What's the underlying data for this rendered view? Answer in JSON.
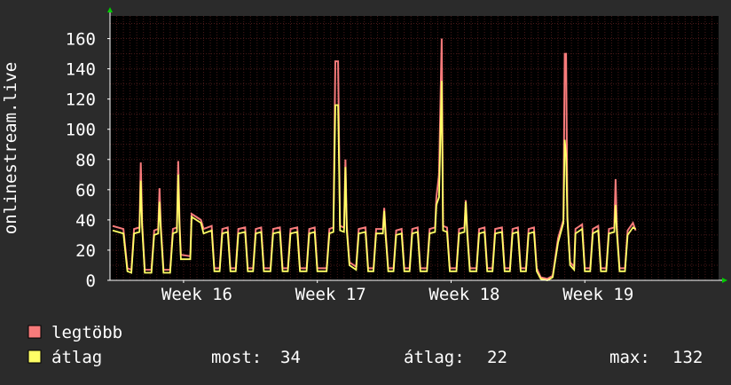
{
  "chart_data": {
    "type": "line",
    "ylabel": "onlinestream.live",
    "ylim": [
      0,
      175
    ],
    "yticks": [
      0,
      20,
      40,
      60,
      80,
      100,
      120,
      140,
      160
    ],
    "xlim": [
      15.45,
      20.0
    ],
    "xticks": [
      {
        "label": "Week 16",
        "x": 16
      },
      {
        "label": "Week 17",
        "x": 17
      },
      {
        "label": "Week 18",
        "x": 18
      },
      {
        "label": "Week 19",
        "x": 19
      }
    ],
    "grid": true,
    "colors": {
      "background": "#2b2b2b",
      "plot_bg": "#000000",
      "grid": "#5a2020",
      "axis": "#ffffff",
      "max_series": "#f77b7b",
      "avg_series": "#ffff66",
      "arrow": "#00cc00"
    },
    "series": [
      {
        "name": "legtöbb",
        "color": "#f77b7b",
        "values": [
          [
            15.47,
            36
          ],
          [
            15.55,
            34
          ],
          [
            15.58,
            8
          ],
          [
            15.61,
            7
          ],
          [
            15.63,
            34
          ],
          [
            15.67,
            35
          ],
          [
            15.68,
            78
          ],
          [
            15.69,
            38
          ],
          [
            15.71,
            7
          ],
          [
            15.76,
            7
          ],
          [
            15.78,
            33
          ],
          [
            15.81,
            34
          ],
          [
            15.82,
            61
          ],
          [
            15.83,
            36
          ],
          [
            15.85,
            7
          ],
          [
            15.9,
            7
          ],
          [
            15.92,
            34
          ],
          [
            15.95,
            35
          ],
          [
            15.96,
            79
          ],
          [
            15.97,
            38
          ],
          [
            15.98,
            17
          ],
          [
            16.05,
            16
          ],
          [
            16.06,
            44
          ],
          [
            16.13,
            40
          ],
          [
            16.15,
            34
          ],
          [
            16.21,
            36
          ],
          [
            16.23,
            8
          ],
          [
            16.27,
            8
          ],
          [
            16.29,
            34
          ],
          [
            16.33,
            35
          ],
          [
            16.35,
            8
          ],
          [
            16.39,
            8
          ],
          [
            16.41,
            34
          ],
          [
            16.46,
            35
          ],
          [
            16.48,
            8
          ],
          [
            16.52,
            8
          ],
          [
            16.54,
            34
          ],
          [
            16.58,
            35
          ],
          [
            16.6,
            8
          ],
          [
            16.65,
            8
          ],
          [
            16.67,
            34
          ],
          [
            16.72,
            35
          ],
          [
            16.74,
            8
          ],
          [
            16.78,
            8
          ],
          [
            16.8,
            34
          ],
          [
            16.85,
            35
          ],
          [
            16.87,
            8
          ],
          [
            16.92,
            8
          ],
          [
            16.94,
            34
          ],
          [
            16.98,
            35
          ],
          [
            17.0,
            8
          ],
          [
            17.07,
            8
          ],
          [
            17.09,
            34
          ],
          [
            17.12,
            35
          ],
          [
            17.135,
            145
          ],
          [
            17.155,
            145
          ],
          [
            17.17,
            36
          ],
          [
            17.2,
            35
          ],
          [
            17.21,
            80
          ],
          [
            17.22,
            36
          ],
          [
            17.24,
            12
          ],
          [
            17.29,
            9
          ],
          [
            17.31,
            34
          ],
          [
            17.36,
            35
          ],
          [
            17.38,
            8
          ],
          [
            17.42,
            8
          ],
          [
            17.44,
            34
          ],
          [
            17.49,
            34
          ],
          [
            17.5,
            48
          ],
          [
            17.51,
            33
          ],
          [
            17.53,
            8
          ],
          [
            17.57,
            8
          ],
          [
            17.59,
            33
          ],
          [
            17.63,
            34
          ],
          [
            17.65,
            8
          ],
          [
            17.69,
            8
          ],
          [
            17.71,
            34
          ],
          [
            17.75,
            35
          ],
          [
            17.77,
            8
          ],
          [
            17.82,
            8
          ],
          [
            17.84,
            34
          ],
          [
            17.88,
            35
          ],
          [
            17.89,
            55
          ],
          [
            17.91,
            70
          ],
          [
            17.93,
            160
          ],
          [
            17.94,
            36
          ],
          [
            17.97,
            35
          ],
          [
            17.99,
            8
          ],
          [
            18.04,
            8
          ],
          [
            18.06,
            34
          ],
          [
            18.1,
            35
          ],
          [
            18.11,
            53
          ],
          [
            18.12,
            34
          ],
          [
            18.14,
            8
          ],
          [
            18.19,
            8
          ],
          [
            18.21,
            34
          ],
          [
            18.25,
            35
          ],
          [
            18.27,
            8
          ],
          [
            18.31,
            8
          ],
          [
            18.33,
            34
          ],
          [
            18.38,
            35
          ],
          [
            18.4,
            8
          ],
          [
            18.44,
            8
          ],
          [
            18.46,
            34
          ],
          [
            18.5,
            35
          ],
          [
            18.52,
            8
          ],
          [
            18.56,
            8
          ],
          [
            18.58,
            34
          ],
          [
            18.62,
            35
          ],
          [
            18.64,
            8
          ],
          [
            18.67,
            2
          ],
          [
            18.72,
            1
          ],
          [
            18.76,
            3
          ],
          [
            18.8,
            28
          ],
          [
            18.84,
            40
          ],
          [
            18.85,
            150
          ],
          [
            18.86,
            150
          ],
          [
            18.87,
            42
          ],
          [
            18.89,
            12
          ],
          [
            18.92,
            9
          ],
          [
            18.93,
            34
          ],
          [
            18.98,
            37
          ],
          [
            19.0,
            8
          ],
          [
            19.04,
            8
          ],
          [
            19.06,
            34
          ],
          [
            19.1,
            36
          ],
          [
            19.12,
            8
          ],
          [
            19.16,
            8
          ],
          [
            19.18,
            34
          ],
          [
            19.22,
            35
          ],
          [
            19.23,
            67
          ],
          [
            19.24,
            34
          ],
          [
            19.26,
            8
          ],
          [
            19.3,
            8
          ],
          [
            19.32,
            33
          ],
          [
            19.36,
            38
          ],
          [
            19.38,
            33
          ]
        ]
      },
      {
        "name": "átlag",
        "color": "#ffff66",
        "values": [
          [
            15.47,
            33
          ],
          [
            15.55,
            31
          ],
          [
            15.58,
            6
          ],
          [
            15.61,
            5
          ],
          [
            15.63,
            31
          ],
          [
            15.67,
            32
          ],
          [
            15.68,
            66
          ],
          [
            15.69,
            35
          ],
          [
            15.71,
            5
          ],
          [
            15.76,
            5
          ],
          [
            15.78,
            30
          ],
          [
            15.81,
            31
          ],
          [
            15.82,
            52
          ],
          [
            15.83,
            33
          ],
          [
            15.85,
            5
          ],
          [
            15.9,
            5
          ],
          [
            15.92,
            31
          ],
          [
            15.95,
            32
          ],
          [
            15.96,
            70
          ],
          [
            15.97,
            35
          ],
          [
            15.98,
            14
          ],
          [
            16.05,
            14
          ],
          [
            16.06,
            42
          ],
          [
            16.13,
            38
          ],
          [
            16.15,
            31
          ],
          [
            16.21,
            33
          ],
          [
            16.23,
            6
          ],
          [
            16.27,
            6
          ],
          [
            16.29,
            31
          ],
          [
            16.33,
            32
          ],
          [
            16.35,
            6
          ],
          [
            16.39,
            6
          ],
          [
            16.41,
            31
          ],
          [
            16.46,
            32
          ],
          [
            16.48,
            6
          ],
          [
            16.52,
            6
          ],
          [
            16.54,
            31
          ],
          [
            16.58,
            32
          ],
          [
            16.6,
            6
          ],
          [
            16.65,
            6
          ],
          [
            16.67,
            31
          ],
          [
            16.72,
            32
          ],
          [
            16.74,
            6
          ],
          [
            16.78,
            6
          ],
          [
            16.8,
            31
          ],
          [
            16.85,
            32
          ],
          [
            16.87,
            6
          ],
          [
            16.92,
            6
          ],
          [
            16.94,
            31
          ],
          [
            16.98,
            32
          ],
          [
            17.0,
            6
          ],
          [
            17.07,
            6
          ],
          [
            17.09,
            31
          ],
          [
            17.12,
            32
          ],
          [
            17.135,
            116
          ],
          [
            17.155,
            116
          ],
          [
            17.17,
            33
          ],
          [
            17.2,
            32
          ],
          [
            17.21,
            75
          ],
          [
            17.22,
            33
          ],
          [
            17.24,
            10
          ],
          [
            17.29,
            7
          ],
          [
            17.31,
            31
          ],
          [
            17.36,
            32
          ],
          [
            17.38,
            6
          ],
          [
            17.42,
            6
          ],
          [
            17.44,
            31
          ],
          [
            17.49,
            31
          ],
          [
            17.5,
            46
          ],
          [
            17.51,
            30
          ],
          [
            17.53,
            6
          ],
          [
            17.57,
            6
          ],
          [
            17.59,
            30
          ],
          [
            17.63,
            31
          ],
          [
            17.65,
            6
          ],
          [
            17.69,
            6
          ],
          [
            17.71,
            31
          ],
          [
            17.75,
            32
          ],
          [
            17.77,
            6
          ],
          [
            17.82,
            6
          ],
          [
            17.84,
            31
          ],
          [
            17.88,
            32
          ],
          [
            17.89,
            50
          ],
          [
            17.91,
            55
          ],
          [
            17.93,
            132
          ],
          [
            17.94,
            33
          ],
          [
            17.97,
            32
          ],
          [
            17.99,
            6
          ],
          [
            18.04,
            6
          ],
          [
            18.06,
            31
          ],
          [
            18.1,
            32
          ],
          [
            18.11,
            52
          ],
          [
            18.12,
            31
          ],
          [
            18.14,
            6
          ],
          [
            18.19,
            6
          ],
          [
            18.21,
            31
          ],
          [
            18.25,
            32
          ],
          [
            18.27,
            6
          ],
          [
            18.31,
            6
          ],
          [
            18.33,
            31
          ],
          [
            18.38,
            32
          ],
          [
            18.4,
            6
          ],
          [
            18.44,
            6
          ],
          [
            18.46,
            31
          ],
          [
            18.5,
            32
          ],
          [
            18.52,
            6
          ],
          [
            18.56,
            6
          ],
          [
            18.58,
            31
          ],
          [
            18.62,
            32
          ],
          [
            18.64,
            6
          ],
          [
            18.67,
            1
          ],
          [
            18.72,
            0
          ],
          [
            18.76,
            2
          ],
          [
            18.8,
            25
          ],
          [
            18.84,
            38
          ],
          [
            18.85,
            93
          ],
          [
            18.86,
            83
          ],
          [
            18.87,
            40
          ],
          [
            18.89,
            10
          ],
          [
            18.92,
            7
          ],
          [
            18.93,
            31
          ],
          [
            18.98,
            34
          ],
          [
            19.0,
            6
          ],
          [
            19.04,
            6
          ],
          [
            19.06,
            31
          ],
          [
            19.1,
            33
          ],
          [
            19.12,
            6
          ],
          [
            19.16,
            6
          ],
          [
            19.18,
            31
          ],
          [
            19.22,
            32
          ],
          [
            19.23,
            50
          ],
          [
            19.24,
            31
          ],
          [
            19.26,
            6
          ],
          [
            19.3,
            6
          ],
          [
            19.32,
            30
          ],
          [
            19.36,
            35
          ],
          [
            19.38,
            34
          ]
        ]
      }
    ],
    "legend": {
      "items": [
        {
          "label": "legtöbb",
          "color": "#f77b7b"
        },
        {
          "label": "átlag",
          "color": "#ffff66"
        }
      ],
      "stats": [
        {
          "label": "most:",
          "value": "34"
        },
        {
          "label": "átlag:",
          "value": "22"
        },
        {
          "label": "max:",
          "value": "132"
        }
      ]
    }
  }
}
